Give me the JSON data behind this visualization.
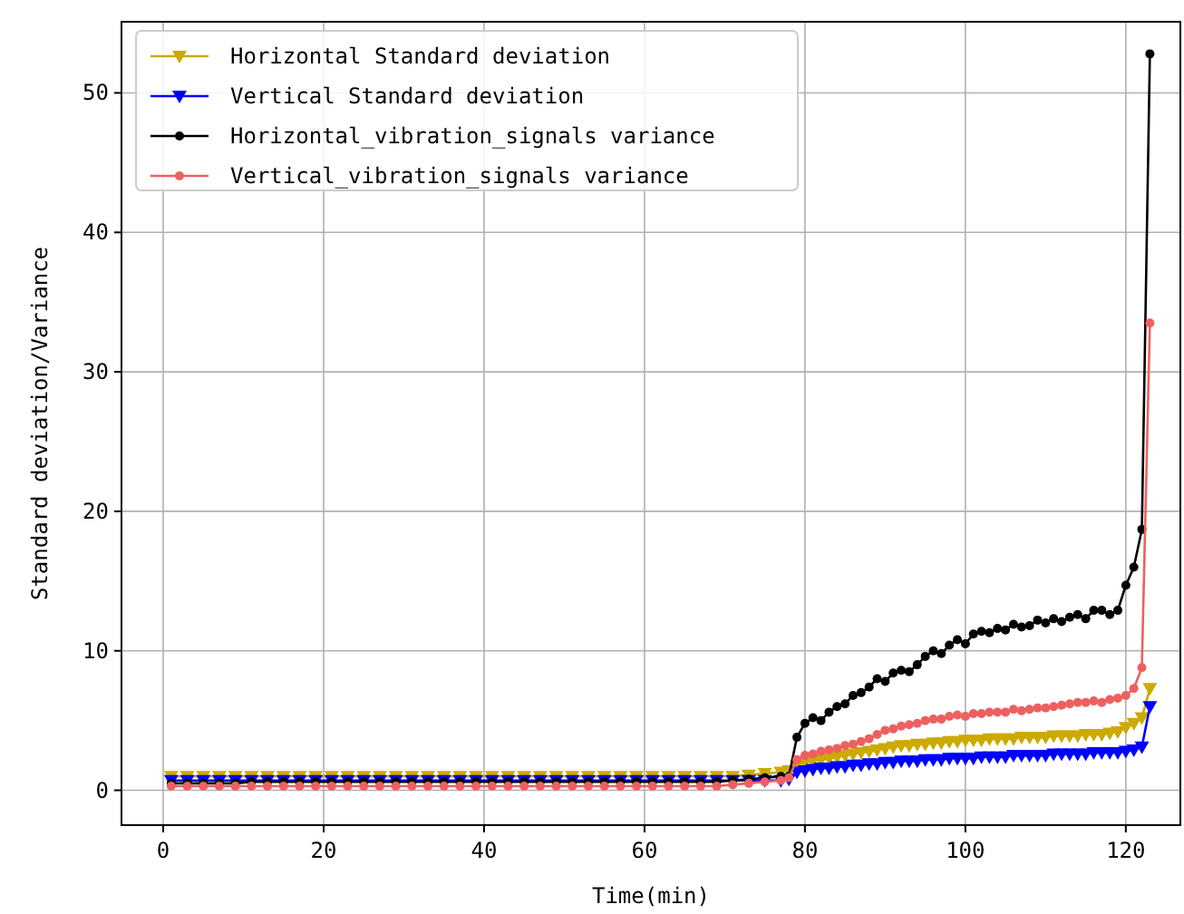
{
  "chart_data": {
    "type": "line",
    "xlabel": "Time(min)",
    "ylabel": "Standard deviation/Variance",
    "x": [
      1,
      3,
      5,
      7,
      9,
      11,
      13,
      15,
      17,
      19,
      21,
      23,
      25,
      27,
      29,
      31,
      33,
      35,
      37,
      39,
      41,
      43,
      45,
      47,
      49,
      51,
      53,
      55,
      57,
      59,
      61,
      63,
      65,
      67,
      69,
      71,
      73,
      75,
      77,
      78,
      79,
      80,
      81,
      82,
      83,
      84,
      85,
      86,
      87,
      88,
      89,
      90,
      91,
      92,
      93,
      94,
      95,
      96,
      97,
      98,
      99,
      100,
      101,
      102,
      103,
      104,
      105,
      106,
      107,
      108,
      109,
      110,
      111,
      112,
      113,
      114,
      115,
      116,
      117,
      118,
      119,
      120,
      121,
      122,
      123
    ],
    "xlim": [
      -5.2,
      126.8
    ],
    "xticks": [
      0,
      20,
      40,
      60,
      80,
      100,
      120
    ],
    "ylim": [
      -2.5,
      55.1
    ],
    "yticks": [
      0,
      10,
      20,
      30,
      40,
      50
    ],
    "grid": true,
    "legend": "top left",
    "series": [
      {
        "name": "Horizontal Standard deviation",
        "color": "#ccaa00",
        "marker": "triangle",
        "values": [
          1.0,
          1.0,
          1.0,
          1.0,
          1.0,
          1.0,
          1.0,
          1.0,
          1.0,
          1.0,
          1.0,
          1.0,
          1.0,
          1.0,
          1.0,
          1.0,
          1.0,
          1.0,
          1.0,
          1.0,
          1.0,
          1.0,
          1.0,
          1.0,
          1.0,
          1.0,
          1.0,
          1.0,
          1.0,
          1.0,
          1.0,
          1.0,
          1.0,
          1.0,
          1.0,
          1.0,
          1.1,
          1.2,
          1.3,
          1.4,
          1.8,
          2.0,
          2.1,
          2.2,
          2.3,
          2.4,
          2.5,
          2.6,
          2.7,
          2.8,
          2.9,
          3.0,
          3.1,
          3.2,
          3.2,
          3.3,
          3.3,
          3.4,
          3.4,
          3.5,
          3.5,
          3.6,
          3.6,
          3.6,
          3.7,
          3.7,
          3.7,
          3.7,
          3.8,
          3.8,
          3.8,
          3.8,
          3.9,
          3.9,
          3.9,
          3.9,
          4.0,
          4.0,
          4.0,
          4.1,
          4.2,
          4.5,
          4.8,
          5.2,
          7.3
        ]
      },
      {
        "name": "Vertical Standard deviation",
        "color": "#0000ff",
        "marker": "triangle",
        "values": [
          0.7,
          0.7,
          0.7,
          0.7,
          0.7,
          0.7,
          0.7,
          0.7,
          0.7,
          0.7,
          0.7,
          0.7,
          0.7,
          0.7,
          0.7,
          0.7,
          0.7,
          0.7,
          0.7,
          0.7,
          0.7,
          0.7,
          0.7,
          0.7,
          0.7,
          0.7,
          0.7,
          0.7,
          0.7,
          0.7,
          0.7,
          0.7,
          0.7,
          0.7,
          0.7,
          0.7,
          0.7,
          0.7,
          0.7,
          0.8,
          1.3,
          1.4,
          1.5,
          1.6,
          1.6,
          1.7,
          1.7,
          1.8,
          1.8,
          1.9,
          1.9,
          2.0,
          2.0,
          2.1,
          2.1,
          2.1,
          2.2,
          2.2,
          2.2,
          2.3,
          2.3,
          2.3,
          2.3,
          2.4,
          2.4,
          2.4,
          2.4,
          2.5,
          2.5,
          2.5,
          2.5,
          2.5,
          2.6,
          2.6,
          2.6,
          2.6,
          2.6,
          2.7,
          2.7,
          2.7,
          2.7,
          2.8,
          2.9,
          3.1,
          6.0
        ]
      },
      {
        "name": "Horizontal_vibration_signals variance",
        "color": "#000000",
        "marker": "circle",
        "values": [
          0.5,
          0.5,
          0.5,
          0.5,
          0.5,
          0.6,
          0.6,
          0.6,
          0.6,
          0.6,
          0.6,
          0.6,
          0.6,
          0.6,
          0.6,
          0.6,
          0.6,
          0.6,
          0.6,
          0.6,
          0.6,
          0.6,
          0.6,
          0.6,
          0.6,
          0.6,
          0.6,
          0.6,
          0.6,
          0.6,
          0.6,
          0.6,
          0.6,
          0.6,
          0.6,
          0.7,
          0.8,
          0.9,
          1.0,
          1.0,
          3.8,
          4.8,
          5.2,
          5.0,
          5.6,
          6.0,
          6.2,
          6.8,
          7.0,
          7.4,
          8.0,
          7.8,
          8.4,
          8.6,
          8.5,
          9.0,
          9.6,
          10.0,
          9.8,
          10.4,
          10.8,
          10.5,
          11.2,
          11.4,
          11.3,
          11.6,
          11.5,
          11.9,
          11.7,
          11.8,
          12.2,
          12.0,
          12.3,
          12.1,
          12.4,
          12.6,
          12.3,
          12.9,
          12.9,
          12.6,
          12.9,
          14.7,
          16.0,
          18.7,
          52.8
        ]
      },
      {
        "name": "Vertical_vibration_signals variance",
        "color": "#ee6060",
        "marker": "circle",
        "values": [
          0.3,
          0.3,
          0.3,
          0.3,
          0.3,
          0.3,
          0.3,
          0.3,
          0.3,
          0.3,
          0.3,
          0.3,
          0.3,
          0.3,
          0.3,
          0.3,
          0.3,
          0.3,
          0.3,
          0.3,
          0.3,
          0.3,
          0.3,
          0.3,
          0.3,
          0.3,
          0.3,
          0.3,
          0.3,
          0.3,
          0.3,
          0.3,
          0.3,
          0.3,
          0.3,
          0.4,
          0.5,
          0.6,
          0.7,
          0.9,
          2.2,
          2.5,
          2.6,
          2.8,
          2.9,
          3.0,
          3.2,
          3.3,
          3.5,
          3.7,
          4.0,
          4.3,
          4.4,
          4.6,
          4.7,
          4.8,
          5.0,
          5.1,
          5.1,
          5.3,
          5.4,
          5.3,
          5.5,
          5.5,
          5.6,
          5.6,
          5.6,
          5.8,
          5.7,
          5.8,
          5.9,
          5.9,
          6.0,
          6.1,
          6.2,
          6.3,
          6.3,
          6.4,
          6.3,
          6.5,
          6.6,
          6.8,
          7.3,
          8.8,
          33.5
        ]
      }
    ]
  }
}
